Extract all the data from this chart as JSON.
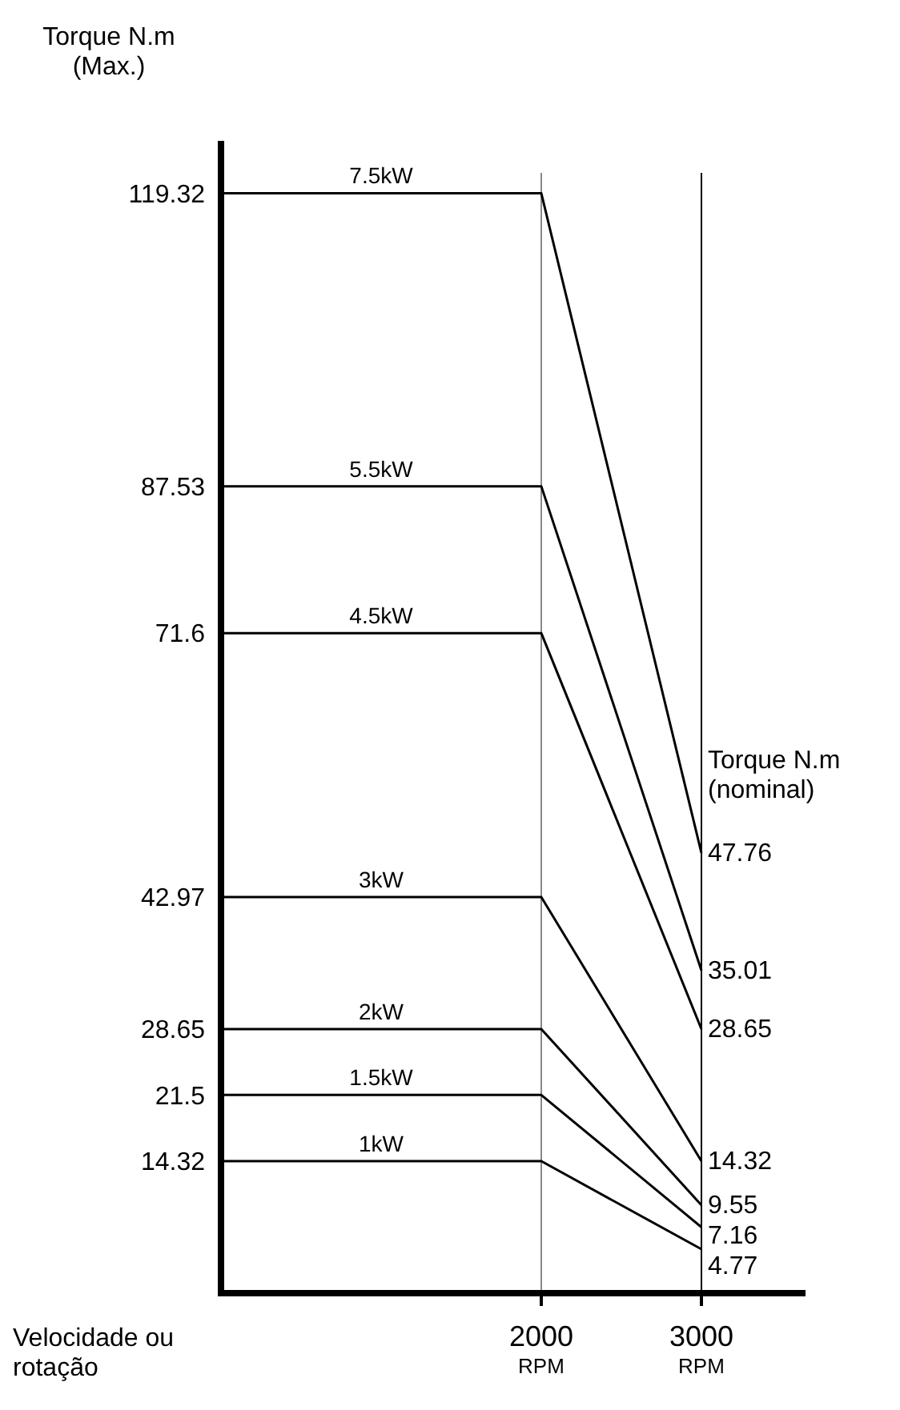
{
  "chart_data": {
    "type": "line",
    "ylabel": "Torque N.m\n(Max.)",
    "y2label": "Torque N.m\n(nominal)",
    "xlabel": "Velocidade ou\nrotação",
    "x": [
      0,
      2000,
      3000
    ],
    "xlim": [
      0,
      3650
    ],
    "xticks": [
      {
        "value": 2000,
        "label": "2000\nRPM"
      },
      {
        "value": 3000,
        "label": "3000\nRPM"
      }
    ],
    "ylim": [
      0,
      125
    ],
    "yticks": [
      119.32,
      87.53,
      71.6,
      42.97,
      28.65,
      21.5,
      14.32
    ],
    "ref_lines": [
      {
        "axis": "x",
        "value": 2000,
        "color": "#888888"
      },
      {
        "axis": "x",
        "value": 3000,
        "color": "#000000"
      }
    ],
    "series": [
      {
        "name": "7.5kW",
        "color": "#000000",
        "values": [
          119.32,
          119.32,
          47.76
        ],
        "value_labels": [
          null,
          null,
          "47.76"
        ]
      },
      {
        "name": "5.5kW",
        "color": "#000000",
        "values": [
          87.53,
          87.53,
          35.01
        ],
        "value_labels": [
          null,
          null,
          "35.01"
        ]
      },
      {
        "name": "4.5kW",
        "color": "#000000",
        "values": [
          71.6,
          71.6,
          28.65
        ],
        "value_labels": [
          null,
          null,
          "28.65"
        ]
      },
      {
        "name": "3kW",
        "color": "#000000",
        "values": [
          42.97,
          42.97,
          14.32
        ],
        "value_labels": [
          null,
          null,
          "14.32"
        ]
      },
      {
        "name": "2kW",
        "color": "#000000",
        "values": [
          28.65,
          28.65,
          9.55
        ],
        "value_labels": [
          null,
          null,
          "9.55"
        ]
      },
      {
        "name": "1.5kW",
        "color": "#000000",
        "values": [
          21.5,
          21.5,
          7.16
        ],
        "value_labels": [
          null,
          null,
          "7.16"
        ]
      },
      {
        "name": "1kW",
        "color": "#000000",
        "values": [
          14.32,
          14.32,
          4.77
        ],
        "value_labels": [
          null,
          null,
          "4.77"
        ]
      }
    ]
  }
}
